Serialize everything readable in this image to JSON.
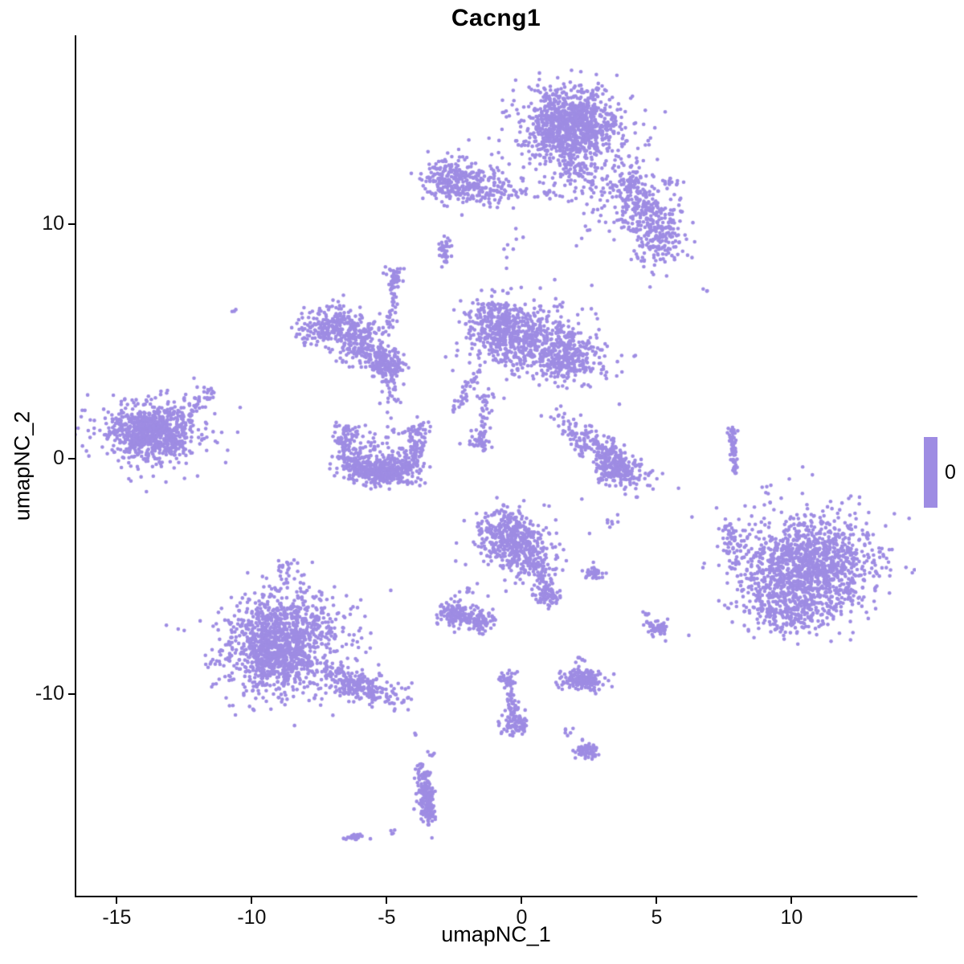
{
  "title": "Cacng1",
  "legend": {
    "items": [
      {
        "label": "0",
        "color": "#9E8CE3"
      }
    ]
  },
  "chart_data": {
    "type": "scatter",
    "title": "Cacng1",
    "xlabel": "umapNC_1",
    "ylabel": "umapNC_2",
    "xlim": [
      -16.5,
      14.6
    ],
    "ylim": [
      -18.6,
      18.0
    ],
    "xticks": [
      -15,
      -10,
      -5,
      0,
      5,
      10
    ],
    "yticks": [
      -10,
      0,
      10
    ],
    "grid": false,
    "legend_position": "right",
    "point_color": "#9E8CE3",
    "point_radius_px": 2.3,
    "seed": 42,
    "clusters": [
      {
        "type": "gauss",
        "n": 800,
        "cx": 1.8,
        "cy": 14.2,
        "sx": 0.85,
        "sy": 0.75
      },
      {
        "type": "gauss",
        "n": 260,
        "cx": 1.9,
        "cy": 13.9,
        "sx": 1.3,
        "sy": 1.15
      },
      {
        "type": "line",
        "n": 70,
        "x1": 1.5,
        "y1": 12.9,
        "x2": 2.6,
        "y2": 11.6,
        "jitter": 0.28
      },
      {
        "type": "gauss",
        "n": 130,
        "cx": 4.0,
        "cy": 11.5,
        "sx": 0.6,
        "sy": 0.5
      },
      {
        "type": "gauss",
        "n": 110,
        "cx": 4.7,
        "cy": 10.4,
        "sx": 0.5,
        "sy": 0.55
      },
      {
        "type": "gauss",
        "n": 150,
        "cx": 5.2,
        "cy": 9.5,
        "sx": 0.45,
        "sy": 0.6
      },
      {
        "type": "gauss",
        "n": 70,
        "cx": 3.6,
        "cy": 10.6,
        "sx": 0.9,
        "sy": 0.8
      },
      {
        "type": "gauss",
        "n": 16,
        "cx": 5.5,
        "cy": 11.8,
        "sx": 0.18,
        "sy": 0.15
      },
      {
        "type": "gauss",
        "n": 22,
        "cx": 4.8,
        "cy": 8.6,
        "sx": 0.4,
        "sy": 0.5
      },
      {
        "type": "gauss",
        "n": 220,
        "cx": -2.6,
        "cy": 11.9,
        "sx": 0.5,
        "sy": 0.45
      },
      {
        "type": "gauss",
        "n": 130,
        "cx": -1.5,
        "cy": 11.6,
        "sx": 0.55,
        "sy": 0.4
      },
      {
        "type": "line",
        "n": 30,
        "x1": -0.8,
        "y1": 11.4,
        "x2": 1.3,
        "y2": 11.3,
        "jitter": 0.12
      },
      {
        "type": "gauss",
        "n": 40,
        "cx": -2.85,
        "cy": 8.8,
        "sx": 0.13,
        "sy": 0.35
      },
      {
        "type": "gauss",
        "n": 3,
        "cx": 6.8,
        "cy": 7.2,
        "sx": 0.06,
        "sy": 0.06
      },
      {
        "type": "gauss",
        "n": 3,
        "cx": -10.7,
        "cy": 6.3,
        "sx": 0.06,
        "sy": 0.06
      },
      {
        "type": "gauss",
        "n": 8,
        "cx": -0.4,
        "cy": 9.1,
        "sx": 0.25,
        "sy": 0.5
      },
      {
        "type": "gauss",
        "n": 270,
        "cx": -7.0,
        "cy": 5.6,
        "sx": 0.7,
        "sy": 0.45
      },
      {
        "type": "gauss",
        "n": 130,
        "cx": -6.0,
        "cy": 5.0,
        "sx": 0.5,
        "sy": 0.45
      },
      {
        "type": "line",
        "n": 45,
        "x1": -5.5,
        "y1": 4.6,
        "x2": -4.6,
        "y2": 4.3,
        "jitter": 0.2
      },
      {
        "type": "line",
        "n": 45,
        "x1": -4.7,
        "y1": 7.7,
        "x2": -4.9,
        "y2": 5.4,
        "jitter": 0.1
      },
      {
        "type": "gauss",
        "n": 30,
        "cx": -4.7,
        "cy": 7.8,
        "sx": 0.16,
        "sy": 0.2
      },
      {
        "type": "gauss",
        "n": 140,
        "cx": -5.0,
        "cy": 3.95,
        "sx": 0.3,
        "sy": 0.28
      },
      {
        "type": "line",
        "n": 30,
        "x1": -6.0,
        "y1": 4.5,
        "x2": -5.2,
        "y2": 4.1,
        "jitter": 0.15
      },
      {
        "type": "gauss",
        "n": 340,
        "cx": -0.9,
        "cy": 5.7,
        "sx": 0.55,
        "sy": 0.6
      },
      {
        "type": "gauss",
        "n": 300,
        "cx": 0.3,
        "cy": 4.9,
        "sx": 0.8,
        "sy": 0.7
      },
      {
        "type": "gauss",
        "n": 260,
        "cx": 1.8,
        "cy": 4.3,
        "sx": 0.7,
        "sy": 0.5
      },
      {
        "type": "gauss",
        "n": 150,
        "cx": 0.5,
        "cy": 5.1,
        "sx": 1.3,
        "sy": 0.95
      },
      {
        "type": "line",
        "n": 40,
        "x1": -1.7,
        "y1": 3.6,
        "x2": -2.5,
        "y2": 1.9,
        "jitter": 0.15
      },
      {
        "type": "line",
        "n": 45,
        "x1": -1.2,
        "y1": 2.9,
        "x2": -1.5,
        "y2": 0.8,
        "jitter": 0.12
      },
      {
        "type": "gauss",
        "n": 35,
        "cx": -1.55,
        "cy": 0.7,
        "sx": 0.2,
        "sy": 0.18
      },
      {
        "type": "arc",
        "n": 400,
        "cx": -5.2,
        "cy": 0.7,
        "radius": 1.4,
        "a0": 150,
        "a1": 390,
        "jitter": 0.22
      },
      {
        "type": "gauss",
        "n": 260,
        "cx": -5.2,
        "cy": -0.5,
        "sx": 0.75,
        "sy": 0.3
      },
      {
        "type": "gauss",
        "n": 90,
        "cx": -5.2,
        "cy": 0.3,
        "sx": 0.8,
        "sy": 0.55
      },
      {
        "type": "line",
        "n": 25,
        "x1": -5.0,
        "y1": 3.7,
        "x2": -4.7,
        "y2": 2.1,
        "jitter": 0.2
      },
      {
        "type": "gauss",
        "n": 650,
        "cx": -13.7,
        "cy": 1.2,
        "sx": 0.8,
        "sy": 0.55
      },
      {
        "type": "gauss",
        "n": 220,
        "cx": -13.6,
        "cy": 1.1,
        "sx": 1.15,
        "sy": 0.85
      },
      {
        "type": "line",
        "n": 35,
        "x1": -12.4,
        "y1": 1.9,
        "x2": -11.5,
        "y2": 2.9,
        "jitter": 0.15
      },
      {
        "type": "gauss",
        "n": 270,
        "cx": 3.0,
        "cy": 0.3,
        "sx": 1.0,
        "sy": 0.33,
        "rot": -40
      },
      {
        "type": "gauss",
        "n": 130,
        "cx": 3.5,
        "cy": -0.5,
        "sx": 0.45,
        "sy": 0.3
      },
      {
        "type": "line",
        "n": 55,
        "x1": 7.8,
        "y1": 1.0,
        "x2": 7.9,
        "y2": -0.6,
        "jitter": 0.05
      },
      {
        "type": "gauss",
        "n": 14,
        "cx": 7.78,
        "cy": 1.15,
        "sx": 0.07,
        "sy": 0.1
      },
      {
        "type": "gauss",
        "n": 280,
        "cx": -0.6,
        "cy": -3.2,
        "sx": 0.55,
        "sy": 0.5
      },
      {
        "type": "gauss",
        "n": 180,
        "cx": 0.3,
        "cy": -4.2,
        "sx": 0.5,
        "sy": 0.5
      },
      {
        "type": "line",
        "n": 45,
        "x1": 0.7,
        "y1": -4.9,
        "x2": 1.0,
        "y2": -5.8,
        "jitter": 0.15
      },
      {
        "type": "gauss",
        "n": 55,
        "cx": 1.0,
        "cy": -5.9,
        "sx": 0.25,
        "sy": 0.22
      },
      {
        "type": "gauss",
        "n": 90,
        "cx": -0.2,
        "cy": -3.6,
        "sx": 0.9,
        "sy": 0.75
      },
      {
        "type": "gauss",
        "n": 35,
        "cx": 2.65,
        "cy": -4.9,
        "sx": 0.2,
        "sy": 0.14
      },
      {
        "type": "gauss",
        "n": 8,
        "cx": 3.3,
        "cy": -2.6,
        "sx": 0.15,
        "sy": 0.2
      },
      {
        "type": "gauss",
        "n": 1050,
        "cx": 10.6,
        "cy": -4.6,
        "sx": 1.15,
        "sy": 1.05
      },
      {
        "type": "gauss",
        "n": 240,
        "cx": 9.7,
        "cy": -6.3,
        "sx": 0.8,
        "sy": 0.55
      },
      {
        "type": "gauss",
        "n": 280,
        "cx": 10.6,
        "cy": -4.4,
        "sx": 1.6,
        "sy": 1.35
      },
      {
        "type": "line",
        "n": 45,
        "x1": 7.6,
        "y1": -2.5,
        "x2": 7.9,
        "y2": -4.7,
        "jitter": 0.15
      },
      {
        "type": "gauss",
        "n": 120,
        "cx": -2.5,
        "cy": -6.6,
        "sx": 0.3,
        "sy": 0.25
      },
      {
        "type": "gauss",
        "n": 100,
        "cx": -1.6,
        "cy": -6.9,
        "sx": 0.32,
        "sy": 0.25
      },
      {
        "type": "gauss",
        "n": 10,
        "cx": -2.0,
        "cy": -5.6,
        "sx": 0.25,
        "sy": 0.18
      },
      {
        "type": "gauss",
        "n": 850,
        "cx": -8.8,
        "cy": -7.7,
        "sx": 1.0,
        "sy": 0.95
      },
      {
        "type": "gauss",
        "n": 280,
        "cx": -9.3,
        "cy": -8.7,
        "sx": 0.7,
        "sy": 0.6
      },
      {
        "type": "gauss",
        "n": 240,
        "cx": -8.6,
        "cy": -7.8,
        "sx": 1.5,
        "sy": 1.35
      },
      {
        "type": "gauss",
        "n": 200,
        "cx": -5.7,
        "cy": -9.8,
        "sx": 0.85,
        "sy": 0.3,
        "rot": -18
      },
      {
        "type": "line",
        "n": 60,
        "x1": -7.1,
        "y1": -9.0,
        "x2": -5.9,
        "y2": -9.6,
        "jitter": 0.22
      },
      {
        "type": "gauss",
        "n": 22,
        "cx": -8.8,
        "cy": -4.7,
        "sx": 0.3,
        "sy": 0.25
      },
      {
        "type": "gauss",
        "n": 60,
        "cx": 5.0,
        "cy": -7.2,
        "sx": 0.22,
        "sy": 0.17
      },
      {
        "type": "gauss",
        "n": 5,
        "cx": 4.6,
        "cy": -6.6,
        "sx": 0.07,
        "sy": 0.07
      },
      {
        "type": "gauss",
        "n": 190,
        "cx": 2.3,
        "cy": -9.4,
        "sx": 0.38,
        "sy": 0.2
      },
      {
        "type": "gauss",
        "n": 7,
        "cx": 2.2,
        "cy": -8.5,
        "sx": 0.12,
        "sy": 0.08
      },
      {
        "type": "line",
        "n": 55,
        "x1": -0.5,
        "y1": -9.4,
        "x2": -0.25,
        "y2": -11.0,
        "jitter": 0.1
      },
      {
        "type": "gauss",
        "n": 75,
        "cx": -0.25,
        "cy": -11.3,
        "sx": 0.25,
        "sy": 0.24
      },
      {
        "type": "gauss",
        "n": 22,
        "cx": -0.55,
        "cy": -9.3,
        "sx": 0.16,
        "sy": 0.12
      },
      {
        "type": "gauss",
        "n": 3,
        "cx": -3.95,
        "cy": -11.7,
        "sx": 0.05,
        "sy": 0.05
      },
      {
        "type": "gauss",
        "n": 70,
        "cx": 2.4,
        "cy": -12.4,
        "sx": 0.2,
        "sy": 0.16
      },
      {
        "type": "gauss",
        "n": 6,
        "cx": 1.7,
        "cy": -11.6,
        "sx": 0.18,
        "sy": 0.18
      },
      {
        "type": "gauss",
        "n": 170,
        "cx": -3.55,
        "cy": -14.2,
        "sx": 0.13,
        "sy": 0.6,
        "rot": 6
      },
      {
        "type": "gauss",
        "n": 40,
        "cx": -3.5,
        "cy": -15.0,
        "sx": 0.16,
        "sy": 0.16
      },
      {
        "type": "gauss",
        "n": 5,
        "cx": -3.4,
        "cy": -12.6,
        "sx": 0.1,
        "sy": 0.1
      },
      {
        "type": "gauss",
        "n": 4,
        "cx": -4.75,
        "cy": -15.9,
        "sx": 0.07,
        "sy": 0.06
      },
      {
        "type": "gauss",
        "n": 35,
        "cx": -6.2,
        "cy": -16.1,
        "sx": 0.2,
        "sy": 0.08
      }
    ]
  }
}
